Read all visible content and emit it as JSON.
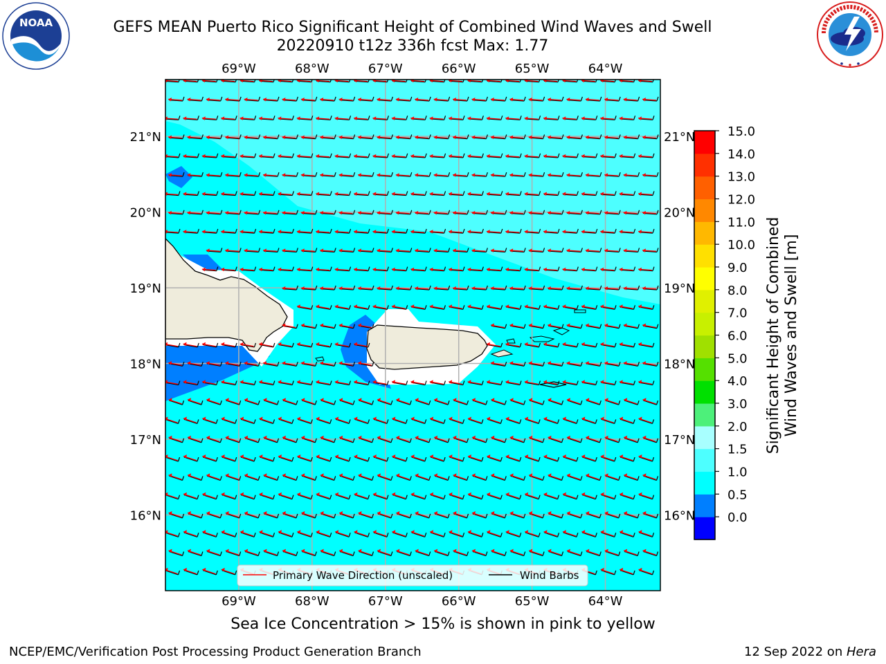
{
  "header": {
    "title_line1": "GEFS MEAN Puerto Rico Significant Height of Combined Wind Waves and Swell",
    "title_line2": "20220910 t12z 336h fcst   Max: 1.77"
  },
  "logos": {
    "left": {
      "text": "NOAA",
      "ring_text": "NATIONAL OCEANIC AND ATMOSPHERIC ADMINISTRATION · U.S. DEPARTMENT OF COMMERCE"
    },
    "right": {
      "ring_text": "NATIONAL WEATHER SERVICE"
    }
  },
  "map": {
    "lon_labels": [
      "69°W",
      "68°W",
      "67°W",
      "66°W",
      "65°W",
      "64°W"
    ],
    "lon_values": [
      -69,
      -68,
      -67,
      -66,
      -65,
      -64
    ],
    "lat_labels": [
      "21°N",
      "20°N",
      "19°N",
      "18°N",
      "17°N",
      "16°N"
    ],
    "lat_values": [
      21,
      20,
      19,
      18,
      17,
      16
    ],
    "extent": {
      "lon_min": -70.0,
      "lon_max": -63.25,
      "lat_min": 15.0,
      "lat_max": 21.75
    },
    "colors": {
      "ocean_1_0_1_5": "#00ffff",
      "ocean_1_5_2_0": "#4dffff",
      "ocean_0_5_1_0": "#007fff",
      "land": "#efecdc",
      "wave_arrow": "#ff0000",
      "wind_barb": "#000000"
    }
  },
  "legend": {
    "items": [
      {
        "label": "Primary Wave Direction (unscaled)",
        "color": "#ff0000"
      },
      {
        "label": "Wind Barbs",
        "color": "#000000"
      }
    ]
  },
  "colorbar": {
    "label_line1": "Significant Height of Combined",
    "label_line2": "Wind Waves and Swell [m]",
    "ticks": [
      "15.0",
      "14.0",
      "13.0",
      "12.0",
      "11.0",
      "10.0",
      "9.0",
      "8.0",
      "7.0",
      "6.0",
      "5.0",
      "4.0",
      "3.0",
      "2.0",
      "1.5",
      "1.0",
      "0.5",
      "0.0"
    ],
    "colors_bottom_to_top": [
      "#0000ff",
      "#007fff",
      "#00ffff",
      "#4dffff",
      "#a8ffff",
      "#4df07a",
      "#00e000",
      "#55e000",
      "#a0e000",
      "#c8f000",
      "#e0f000",
      "#ffff00",
      "#ffe000",
      "#ffb800",
      "#ff8800",
      "#ff6000",
      "#ff3000",
      "#ff0000"
    ]
  },
  "caption": "Sea Ice Concentration > 15% is shown in pink to yellow",
  "footer": {
    "left": "NCEP/EMC/Verification Post Processing Product Generation Branch",
    "right_prefix": "12 Sep 2022 on ",
    "right_host": "Hera"
  }
}
